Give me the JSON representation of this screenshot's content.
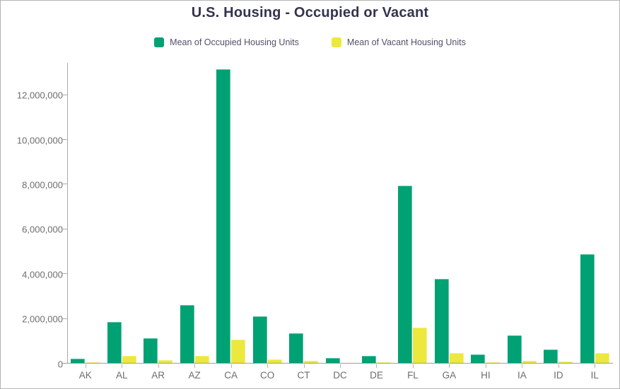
{
  "header": {
    "title": "U.S. Housing - Occupied or Vacant"
  },
  "legend": {
    "items": [
      {
        "label": "Mean of Occupied Housing Units",
        "color": "#00a173"
      },
      {
        "label": "Mean of Vacant Housing Units",
        "color": "#ece83d"
      }
    ]
  },
  "chart_data": {
    "type": "bar",
    "title": "U.S. Housing - Occupied or Vacant",
    "categories": [
      "AK",
      "AL",
      "AR",
      "AZ",
      "CA",
      "CO",
      "CT",
      "DC",
      "DE",
      "FL",
      "GA",
      "HI",
      "IA",
      "ID",
      "IL"
    ],
    "series": [
      {
        "name": "Mean of Occupied Housing Units",
        "color": "#00a173",
        "values": [
          230000,
          1860000,
          1130000,
          2620000,
          13150000,
          2120000,
          1360000,
          255000,
          340000,
          7950000,
          3790000,
          425000,
          1250000,
          620000,
          4880000
        ]
      },
      {
        "name": "Mean of Vacant Housing Units",
        "color": "#ece83d",
        "values": [
          50000,
          360000,
          170000,
          360000,
          1070000,
          200000,
          125000,
          45000,
          65000,
          1600000,
          465000,
          80000,
          125000,
          95000,
          465000
        ]
      }
    ],
    "xlabel": "",
    "ylabel": "",
    "ylim": [
      0,
      13440000
    ],
    "yticks": [
      0,
      2000000,
      4000000,
      6000000,
      8000000,
      10000000,
      12000000
    ],
    "ytick_labels": [
      "0",
      "2,000,000",
      "4,000,000",
      "6,000,000",
      "8,000,000",
      "10,000,000",
      "12,000,000"
    ],
    "grid": false,
    "legend_position": "top"
  }
}
